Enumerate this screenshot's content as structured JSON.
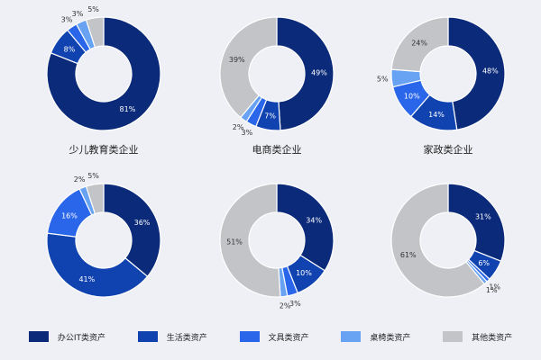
{
  "colors": [
    "#0b2a7a",
    "#1043b0",
    "#2a66ea",
    "#68a2f2",
    "#c3c4c8"
  ],
  "legend": [
    {
      "label": "办公IT类资产",
      "color": "#0b2a7a"
    },
    {
      "label": "生活类资产",
      "color": "#1043b0"
    },
    {
      "label": "文具类资产",
      "color": "#2a66ea"
    },
    {
      "label": "桌椅类资产",
      "color": "#68a2f2"
    },
    {
      "label": "其他类资产",
      "color": "#c3c4c8"
    }
  ],
  "chart_data": [
    {
      "type": "pie",
      "title": "",
      "categories": [
        "办公IT类资产",
        "生活类资产",
        "文具类资产",
        "桌椅类资产",
        "其他类资产"
      ],
      "values": [
        81,
        8,
        3,
        3,
        5
      ],
      "labels": [
        "81%",
        "8%",
        "3%",
        "3%",
        "5%"
      ]
    },
    {
      "type": "pie",
      "title": "",
      "categories": [
        "办公IT类资产",
        "生活类资产",
        "文具类资产",
        "桌椅类资产",
        "其他类资产"
      ],
      "values": [
        49,
        7,
        3,
        2,
        39
      ],
      "labels": [
        "49%",
        "7%",
        "3%",
        "2%",
        "39%"
      ]
    },
    {
      "type": "pie",
      "title": "",
      "categories": [
        "办公IT类资产",
        "生活类资产",
        "文具类资产",
        "桌椅类资产",
        "其他类资产"
      ],
      "values": [
        48,
        14,
        10,
        5,
        24
      ],
      "labels": [
        "48%",
        "14%",
        "10%",
        "5%",
        "24%"
      ]
    },
    {
      "type": "pie",
      "title": "少儿教育类企业",
      "categories": [
        "办公IT类资产",
        "生活类资产",
        "文具类资产",
        "桌椅类资产",
        "其他类资产"
      ],
      "values": [
        36,
        41,
        16,
        2,
        5
      ],
      "labels": [
        "36%",
        "41%",
        "16%",
        "2%",
        "5%"
      ]
    },
    {
      "type": "pie",
      "title": "电商类企业",
      "categories": [
        "办公IT类资产",
        "生活类资产",
        "文具类资产",
        "桌椅类资产",
        "其他类资产"
      ],
      "values": [
        34,
        10,
        3,
        2,
        51
      ],
      "labels": [
        "34%",
        "10%",
        "3%",
        "2%",
        "51%"
      ]
    },
    {
      "type": "pie",
      "title": "家政类企业",
      "categories": [
        "办公IT类资产",
        "生活类资产",
        "文具类资产",
        "桌椅类资产",
        "其他类资产"
      ],
      "values": [
        31,
        6,
        1,
        1,
        61
      ],
      "labels": [
        "31%",
        "6%",
        "1%",
        "1%",
        "61%"
      ]
    }
  ]
}
